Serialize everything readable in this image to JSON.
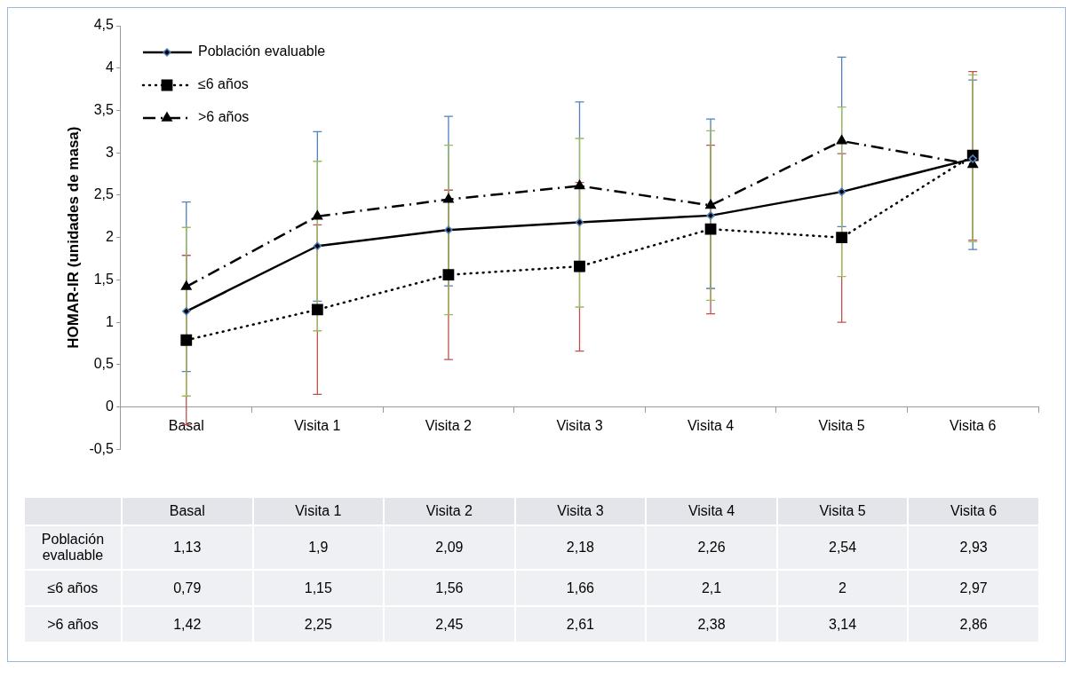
{
  "chart_data": {
    "type": "line",
    "ylabel": "HOMAR-IR (unidades de masa)",
    "categories": [
      "Basal",
      "Visita 1",
      "Visita 2",
      "Visita 3",
      "Visita 4",
      "Visita 5",
      "Visita 6"
    ],
    "ylim": [
      -0.5,
      4.5
    ],
    "yticks": [
      {
        "value": -0.5,
        "label": "-0,5"
      },
      0,
      {
        "value": 0.5,
        "label": "0,5"
      },
      1,
      {
        "value": 1.5,
        "label": "1,5"
      },
      2,
      {
        "value": 2.5,
        "label": "2,5"
      },
      3,
      {
        "value": 3.5,
        "label": "3,5"
      },
      4,
      {
        "value": 4.5,
        "label": "4,5"
      }
    ],
    "grid": false,
    "legend": "top left",
    "data_labels": true,
    "series": [
      {
        "name": "Población evaluable",
        "color": "#000000",
        "marker": "diamond",
        "line_style": "solid",
        "values": [
          1.13,
          1.9,
          2.09,
          2.18,
          2.26,
          2.54,
          2.93
        ],
        "value_labels": [
          "1,13",
          "1,9",
          "2,09",
          "2,18",
          "2,26",
          "2,54",
          "2,93"
        ],
        "errors": [
          [
            0.42,
            2.42
          ],
          [
            1.25,
            3.25
          ],
          [
            1.43,
            3.43
          ],
          [
            1.6,
            3.6
          ],
          [
            1.4,
            3.4
          ],
          [
            2.13,
            4.13
          ],
          [
            1.86,
            3.86
          ]
        ]
      },
      {
        "name": "≤6 años",
        "color": "#000000",
        "marker": "square",
        "line_style": "dotted",
        "values": [
          0.79,
          1.15,
          1.56,
          1.66,
          2.1,
          2,
          2.97
        ],
        "value_labels": [
          "0,79",
          "1,15",
          "1,56",
          "1,66",
          "2,1",
          "2",
          "2,97"
        ],
        "errors": [
          [
            -0.21,
            1.79
          ],
          [
            0.15,
            2.15
          ],
          [
            0.56,
            2.56
          ],
          [
            0.66,
            2.65
          ],
          [
            1.1,
            3.09
          ],
          [
            1,
            2.99
          ],
          [
            1.97,
            3.96
          ]
        ]
      },
      {
        "name": ">6 años",
        "color": "#000000",
        "marker": "triangle",
        "line_style": "dashed",
        "values": [
          1.42,
          2.25,
          2.45,
          2.61,
          2.38,
          3.14,
          2.86
        ],
        "value_labels": [
          "1,42",
          "2,25",
          "2,45",
          "2,61",
          "2,38",
          "3,14",
          "2,86"
        ],
        "errors": [
          [
            0.13,
            2.12
          ],
          [
            0.9,
            2.9
          ],
          [
            1.09,
            3.09
          ],
          [
            1.18,
            3.17
          ],
          [
            1.26,
            3.26
          ],
          [
            1.54,
            3.54
          ],
          [
            1.95,
            3.92
          ]
        ]
      }
    ]
  }
}
